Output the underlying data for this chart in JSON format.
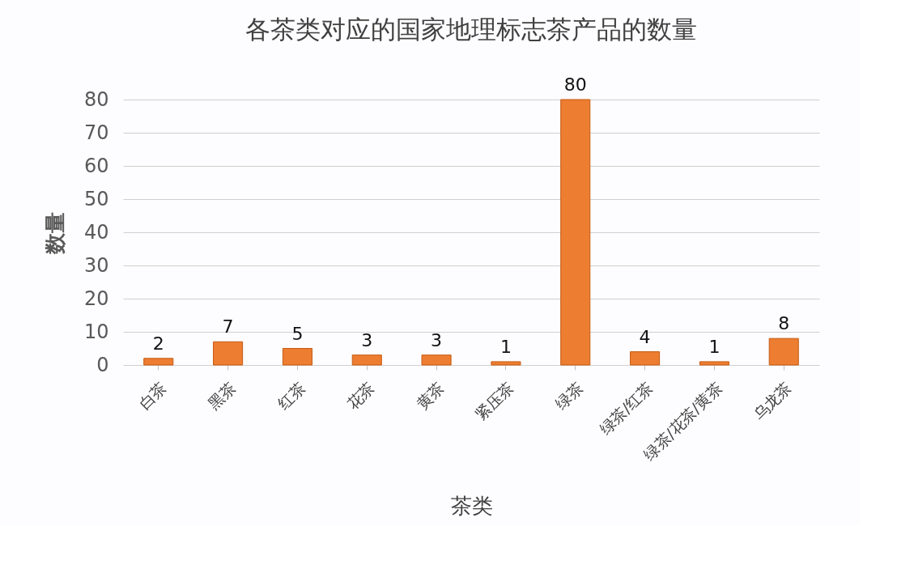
{
  "chart_data": {
    "type": "bar",
    "title": "各茶类对应的国家地理标志茶产品的数量",
    "xlabel": "茶类",
    "ylabel": "数量",
    "categories": [
      "白茶",
      "黑茶",
      "红茶",
      "花茶",
      "黄茶",
      "紧压茶",
      "绿茶",
      "绿茶/红茶",
      "绿茶/花茶/黄茶",
      "乌龙茶"
    ],
    "values": [
      2,
      7,
      5,
      3,
      3,
      1,
      80,
      4,
      1,
      8
    ],
    "color": "#ed7d31",
    "ylim": [
      0,
      80
    ],
    "yticks": [
      0,
      10,
      20,
      30,
      40,
      50,
      60,
      70,
      80
    ],
    "grid": "y",
    "data_labels": true
  }
}
